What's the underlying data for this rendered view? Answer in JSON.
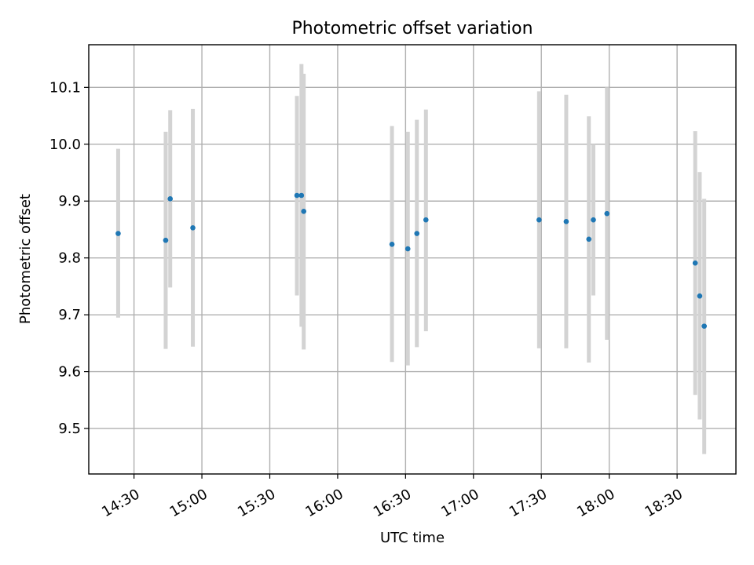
{
  "chart_data": {
    "type": "scatter",
    "title": "Photometric offset variation",
    "xlabel": "UTC time",
    "ylabel": "Photometric offset",
    "x_unit": "time",
    "xlim": [
      "14:10",
      "18:56"
    ],
    "ylim": [
      9.42,
      10.175
    ],
    "grid": true,
    "x_ticks": [
      "14:30",
      "15:00",
      "15:30",
      "16:00",
      "16:30",
      "17:00",
      "17:30",
      "18:00",
      "18:30"
    ],
    "y_ticks": [
      "9.5",
      "9.6",
      "9.7",
      "9.8",
      "9.9",
      "10.0",
      "10.1"
    ],
    "series": [
      {
        "marker_color": "#1f77b4",
        "errorbar_color": "#d3d3d3",
        "points": [
          {
            "x": "14:23",
            "y": 9.843,
            "ylow": 9.695,
            "yhigh": 9.992
          },
          {
            "x": "14:44",
            "y": 9.831,
            "ylow": 9.64,
            "yhigh": 10.022
          },
          {
            "x": "14:46",
            "y": 9.904,
            "ylow": 9.748,
            "yhigh": 10.06
          },
          {
            "x": "14:56",
            "y": 9.853,
            "ylow": 9.644,
            "yhigh": 10.062
          },
          {
            "x": "15:42",
            "y": 9.91,
            "ylow": 9.734,
            "yhigh": 10.085
          },
          {
            "x": "15:44",
            "y": 9.91,
            "ylow": 9.679,
            "yhigh": 10.141
          },
          {
            "x": "15:45",
            "y": 9.882,
            "ylow": 9.639,
            "yhigh": 10.124
          },
          {
            "x": "16:24",
            "y": 9.824,
            "ylow": 9.617,
            "yhigh": 10.032
          },
          {
            "x": "16:31",
            "y": 9.816,
            "ylow": 9.611,
            "yhigh": 10.022
          },
          {
            "x": "16:35",
            "y": 9.843,
            "ylow": 9.643,
            "yhigh": 10.043
          },
          {
            "x": "16:39",
            "y": 9.867,
            "ylow": 9.671,
            "yhigh": 10.061
          },
          {
            "x": "17:29",
            "y": 9.867,
            "ylow": 9.641,
            "yhigh": 10.093
          },
          {
            "x": "17:41",
            "y": 9.864,
            "ylow": 9.641,
            "yhigh": 10.087
          },
          {
            "x": "17:51",
            "y": 9.833,
            "ylow": 9.616,
            "yhigh": 10.049
          },
          {
            "x": "17:53",
            "y": 9.867,
            "ylow": 9.734,
            "yhigh": 10.0
          },
          {
            "x": "17:59",
            "y": 9.878,
            "ylow": 9.656,
            "yhigh": 10.1
          },
          {
            "x": "18:38",
            "y": 9.791,
            "ylow": 9.559,
            "yhigh": 10.023
          },
          {
            "x": "18:40",
            "y": 9.733,
            "ylow": 9.516,
            "yhigh": 9.951
          },
          {
            "x": "18:42",
            "y": 9.68,
            "ylow": 9.455,
            "yhigh": 9.904
          }
        ]
      }
    ]
  }
}
